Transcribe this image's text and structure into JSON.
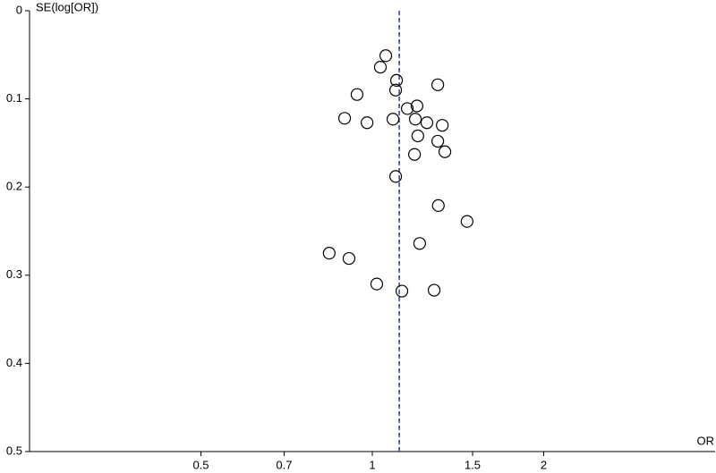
{
  "chart_data": {
    "type": "scatter",
    "x_label": "OR",
    "y_label": "SE(log[OR])",
    "x": [
      1.056,
      1.033,
      1.103,
      1.303,
      1.099,
      0.94,
      1.198,
      1.152,
      0.894,
      1.087,
      0.979,
      1.19,
      1.247,
      1.327,
      1.202,
      1.303,
      1.186,
      1.341,
      1.099,
      1.306,
      1.467,
      1.211,
      0.84,
      0.91,
      1.018,
      1.127,
      1.284
    ],
    "values": [
      0.051,
      0.064,
      0.079,
      0.084,
      0.09,
      0.095,
      0.108,
      0.111,
      0.122,
      0.123,
      0.127,
      0.123,
      0.127,
      0.13,
      0.142,
      0.148,
      0.163,
      0.16,
      0.188,
      0.221,
      0.239,
      0.264,
      0.275,
      0.281,
      0.31,
      0.318,
      0.317
    ],
    "color": "#000000",
    "x_log": true,
    "y_inverted": true,
    "xlim": [
      0.25,
      4
    ],
    "ylim": [
      0,
      0.5
    ],
    "xticks": [
      0.5,
      0.7,
      1,
      1.5,
      2
    ],
    "yticks": [
      0,
      0.1,
      0.2,
      0.3,
      0.4,
      0.5
    ],
    "reference_line": 1.115,
    "reference_color": "#2b3f9e"
  }
}
